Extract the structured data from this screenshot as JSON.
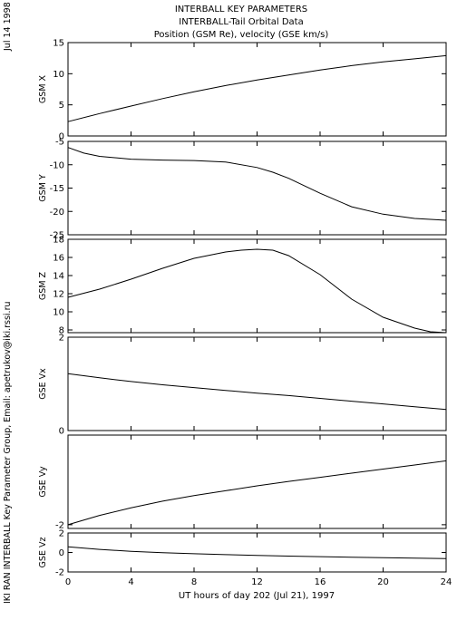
{
  "header": {
    "title1": "INTERBALL KEY PARAMETERS",
    "title2": "INTERBALL-Tail Orbital Data",
    "title3": "Position (GSM Re), velocity (GSE km/s)"
  },
  "side": {
    "date": "Jul 14 1998",
    "credit": "IKI RAN INTERBALL Key Parameter Group, Email: apetrukov@iki.rssi.ru"
  },
  "xaxis": {
    "label": "UT hours of day 202 (Jul 21), 1997",
    "ticks": [
      "0",
      "4",
      "8",
      "12",
      "16",
      "20",
      "24"
    ]
  },
  "chart_data": [
    {
      "type": "line",
      "ylabel": "GSM X",
      "xlim": [
        0,
        24
      ],
      "ylim": [
        0,
        15
      ],
      "yticks": [
        0,
        5,
        10,
        15
      ],
      "ytick_labels": [
        "0",
        "5",
        "10",
        "15"
      ],
      "series": [
        {
          "x": [
            0,
            2,
            4,
            6,
            8,
            10,
            12,
            14,
            16,
            18,
            20,
            22,
            24
          ],
          "y": [
            2.3,
            3.6,
            4.8,
            6.0,
            7.1,
            8.1,
            9.0,
            9.8,
            10.6,
            11.3,
            11.9,
            12.4,
            12.9
          ]
        }
      ]
    },
    {
      "type": "line",
      "ylabel": "GSM Y",
      "xlim": [
        0,
        24
      ],
      "ylim": [
        -25,
        -5
      ],
      "yticks": [
        -25,
        -20,
        -15,
        -10,
        -5
      ],
      "ytick_labels": [
        "-25",
        "-20",
        "-15",
        "-10",
        "-5"
      ],
      "series": [
        {
          "x": [
            0,
            1,
            2,
            4,
            6,
            8,
            10,
            12,
            13,
            14,
            16,
            18,
            20,
            22,
            24
          ],
          "y": [
            -6.3,
            -7.5,
            -8.2,
            -8.8,
            -9.0,
            -9.1,
            -9.4,
            -10.6,
            -11.6,
            -12.9,
            -16.1,
            -19.0,
            -20.6,
            -21.5,
            -21.9
          ]
        }
      ]
    },
    {
      "type": "line",
      "ylabel": "GSM Z",
      "xlim": [
        0,
        24
      ],
      "ylim": [
        7.7,
        18
      ],
      "yticks": [
        8,
        10,
        12,
        14,
        16,
        18
      ],
      "ytick_labels": [
        "8",
        "10",
        "12",
        "14",
        "16",
        "18"
      ],
      "series": [
        {
          "x": [
            0,
            2,
            4,
            6,
            8,
            10,
            11,
            12,
            13,
            14,
            16,
            18,
            20,
            22,
            23,
            24
          ],
          "y": [
            11.6,
            12.5,
            13.6,
            14.8,
            15.9,
            16.6,
            16.8,
            16.9,
            16.8,
            16.2,
            14.1,
            11.4,
            9.4,
            8.2,
            7.8,
            7.7
          ]
        }
      ]
    },
    {
      "type": "line",
      "ylabel": "GSE Vx",
      "xlim": [
        0,
        24
      ],
      "ylim": [
        0,
        2
      ],
      "yticks": [
        0,
        2
      ],
      "ytick_labels": [
        "0",
        "2"
      ],
      "series": [
        {
          "x": [
            0,
            2,
            4,
            6,
            8,
            10,
            12,
            14,
            16,
            18,
            20,
            22,
            24
          ],
          "y": [
            1.22,
            1.13,
            1.05,
            0.98,
            0.92,
            0.86,
            0.8,
            0.75,
            0.69,
            0.63,
            0.57,
            0.51,
            0.45
          ]
        }
      ]
    },
    {
      "type": "line",
      "ylabel": "GSE Vy",
      "xlim": [
        0,
        24
      ],
      "ylim": [
        -2.1,
        0.4
      ],
      "yticks": [
        -2
      ],
      "ytick_labels": [
        "-2"
      ],
      "series": [
        {
          "x": [
            0,
            2,
            4,
            6,
            8,
            10,
            12,
            14,
            16,
            18,
            20,
            22,
            24
          ],
          "y": [
            -2.0,
            -1.75,
            -1.55,
            -1.37,
            -1.22,
            -1.09,
            -0.96,
            -0.84,
            -0.73,
            -0.62,
            -0.51,
            -0.4,
            -0.29
          ]
        }
      ]
    },
    {
      "type": "line",
      "ylabel": "GSE Vz",
      "xlim": [
        0,
        24
      ],
      "ylim": [
        -2,
        2
      ],
      "yticks": [
        -2,
        0,
        2
      ],
      "ytick_labels": [
        "-2",
        "0",
        "2"
      ],
      "series": [
        {
          "x": [
            0,
            2,
            4,
            6,
            8,
            10,
            12,
            14,
            16,
            18,
            20,
            22,
            24
          ],
          "y": [
            0.58,
            0.32,
            0.12,
            -0.02,
            -0.13,
            -0.22,
            -0.3,
            -0.37,
            -0.43,
            -0.49,
            -0.54,
            -0.58,
            -0.62
          ]
        }
      ]
    }
  ]
}
